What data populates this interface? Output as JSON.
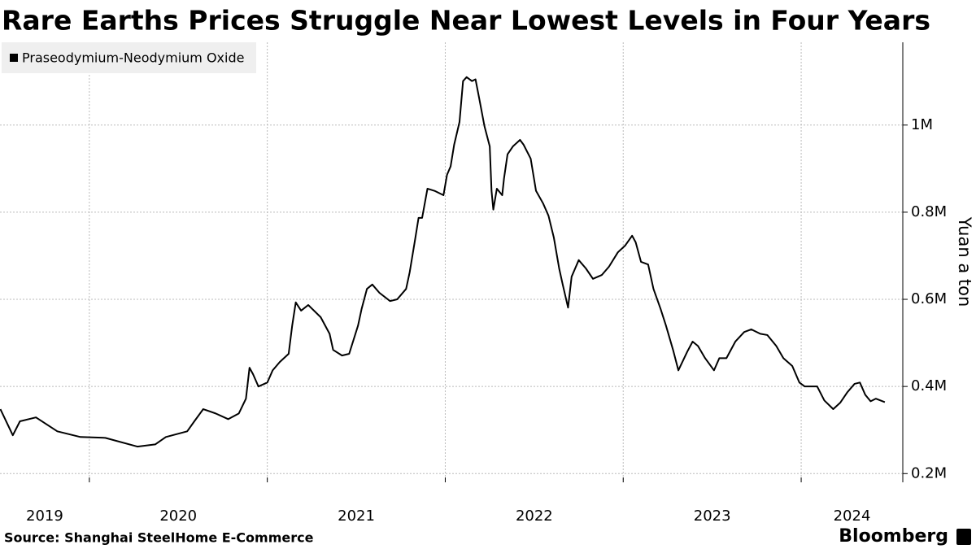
{
  "chart_data": {
    "type": "line",
    "title": "Rare Earths Prices Struggle Near Lowest Levels in Four Years",
    "ylabel": "Yuan a ton",
    "source": "Source: Shanghai SteelHome E-Commerce",
    "brand": "Bloomberg",
    "xlim": [
      2019.498,
      2024.571
    ],
    "xticks": [
      {
        "value": 2019,
        "label": "2019"
      },
      {
        "value": 2020,
        "label": "2020"
      },
      {
        "value": 2021,
        "label": "2021"
      },
      {
        "value": 2022,
        "label": "2022"
      },
      {
        "value": 2023,
        "label": "2023"
      },
      {
        "value": 2024,
        "label": "2024"
      }
    ],
    "ylim": [
      180000,
      1190000
    ],
    "yticks": [
      {
        "value": 200000,
        "label": "0.2M"
      },
      {
        "value": 400000,
        "label": "0.4M"
      },
      {
        "value": 600000,
        "label": "0.6M"
      },
      {
        "value": 800000,
        "label": "0.8M"
      },
      {
        "value": 1000000,
        "label": "1M"
      }
    ],
    "grid": true,
    "legend": "top-left",
    "x": [
      2019.5,
      2019.57,
      2019.61,
      2019.7,
      2019.82,
      2019.95,
      2020.09,
      2020.27,
      2020.37,
      2020.43,
      2020.55,
      2020.59,
      2020.64,
      2020.71,
      2020.78,
      2020.84,
      2020.88,
      2020.9,
      2020.92,
      2020.95,
      2021.0,
      2021.03,
      2021.07,
      2021.12,
      2021.14,
      2021.16,
      2021.19,
      2021.23,
      2021.3,
      2021.35,
      2021.37,
      2021.42,
      2021.46,
      2021.51,
      2021.53,
      2021.56,
      2021.59,
      2021.63,
      2021.69,
      2021.73,
      2021.78,
      2021.8,
      2021.83,
      2021.85,
      2021.87,
      2021.9,
      2021.94,
      2021.99,
      2022.01,
      2022.03,
      2022.05,
      2022.08,
      2022.1,
      2022.12,
      2022.15,
      2022.17,
      2022.19,
      2022.22,
      2022.25,
      2022.26,
      2022.27,
      2022.29,
      2022.32,
      2022.33,
      2022.35,
      2022.38,
      2022.42,
      2022.44,
      2022.48,
      2022.51,
      2022.55,
      2022.58,
      2022.61,
      2022.64,
      2022.66,
      2022.69,
      2022.71,
      2022.73,
      2022.75,
      2022.79,
      2022.83,
      2022.88,
      2022.92,
      2022.97,
      2023.01,
      2023.05,
      2023.07,
      2023.1,
      2023.14,
      2023.17,
      2023.21,
      2023.24,
      2023.28,
      2023.31,
      2023.36,
      2023.39,
      2023.42,
      2023.46,
      2023.51,
      2023.54,
      2023.58,
      2023.63,
      2023.68,
      2023.72,
      2023.77,
      2023.81,
      2023.86,
      2023.9,
      2023.95,
      2023.99,
      2024.02,
      2024.09,
      2024.13,
      2024.18,
      2024.22,
      2024.26,
      2024.3,
      2024.33,
      2024.36,
      2024.39,
      2024.42,
      2024.47
    ],
    "series": [
      {
        "name": "Praseodymium-Neodymium Oxide",
        "color": "#000000",
        "values": [
          348000,
          288000,
          320000,
          329000,
          297000,
          284000,
          282000,
          262000,
          267000,
          284000,
          297000,
          320000,
          348000,
          338000,
          325000,
          338000,
          372000,
          443000,
          428000,
          400000,
          409000,
          437000,
          456000,
          475000,
          540000,
          593000,
          574000,
          587000,
          559000,
          521000,
          484000,
          471000,
          475000,
          540000,
          578000,
          624000,
          634000,
          615000,
          596000,
          600000,
          624000,
          662000,
          736000,
          787000,
          787000,
          854000,
          849000,
          839000,
          886000,
          905000,
          955000,
          1007000,
          1101000,
          1110000,
          1101000,
          1105000,
          1063000,
          998000,
          951000,
          849000,
          806000,
          854000,
          839000,
          877000,
          933000,
          951000,
          966000,
          955000,
          923000,
          849000,
          820000,
          792000,
          742000,
          671000,
          634000,
          581000,
          652000,
          671000,
          690000,
          671000,
          647000,
          656000,
          675000,
          708000,
          723000,
          746000,
          731000,
          686000,
          680000,
          624000,
          578000,
          540000,
          484000,
          437000,
          480000,
          503000,
          493000,
          465000,
          437000,
          465000,
          465000,
          503000,
          525000,
          531000,
          521000,
          518000,
          493000,
          465000,
          447000,
          409000,
          400000,
          400000,
          368000,
          348000,
          363000,
          387000,
          406000,
          409000,
          381000,
          366000,
          372000,
          364000
        ]
      }
    ]
  }
}
